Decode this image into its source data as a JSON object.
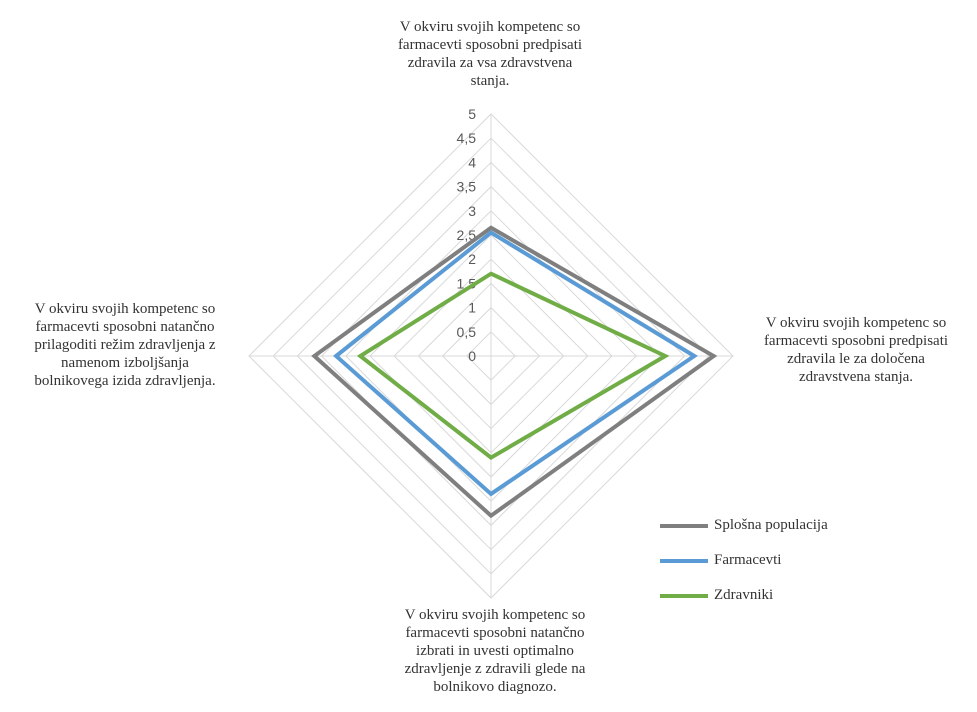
{
  "chart_data": {
    "type": "radar",
    "title": "",
    "categories": [
      "V okviru svojih kompetenc so\nfarmacevti sposobni predpisati\nzdravila za vsa zdravstvena\nstanja.",
      "V okviru svojih kompetenc so\nfarmacevti sposobni predpisati\nzdravila le za določena\nzdravstvena stanja.",
      "V okviru svojih kompetenc so\nfarmacevti sposobni natančno\nizbrati in uvesti optimalno\nzdravljenje z zdravili glede na\nbolnikovo diagnozo.",
      "V okviru svojih kompetenc so\nfarmacevti sposobni natančno\nprilagoditi režim zdravljenja z\nnamenom izboljšanja\nbolnikovega izida zdravljenja."
    ],
    "r_ticks": [
      "0",
      "0,5",
      "1",
      "1,5",
      "2",
      "2,5",
      "3",
      "3,5",
      "4",
      "4,5",
      "5"
    ],
    "rlim": [
      0,
      5
    ],
    "grid": true,
    "legend_position": "bottom-right",
    "series": [
      {
        "name": "Splošna populacija",
        "color": "#7f7f7f",
        "values": [
          2.65,
          4.6,
          3.3,
          3.65
        ]
      },
      {
        "name": "Farmacevti",
        "color": "#5b9bd5",
        "values": [
          2.55,
          4.2,
          2.85,
          3.2
        ]
      },
      {
        "name": "Zdravniki",
        "color": "#70ad47",
        "values": [
          1.7,
          3.6,
          2.1,
          2.7
        ]
      }
    ]
  }
}
